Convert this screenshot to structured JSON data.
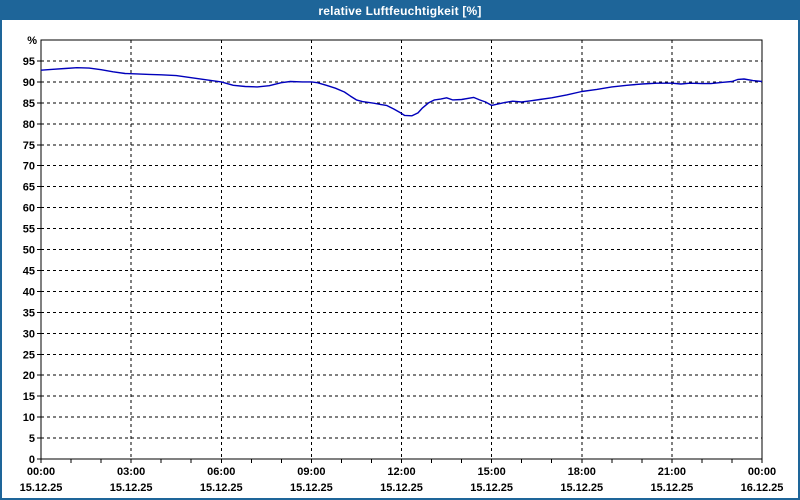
{
  "window": {
    "title": "relative Luftfeuchtigkeit [%]",
    "frame_color": "#1e6599",
    "title_text_color": "#ffffff",
    "background": "#ffffff"
  },
  "chart_data": {
    "type": "line",
    "title": "relative Luftfeuchtigkeit [%]",
    "ylabel": "%",
    "grid": {
      "horizontal": "dashed",
      "vertical": "dashed",
      "color": "#000000"
    },
    "y_axis": {
      "range": [
        0,
        100
      ],
      "tick_step": 5,
      "unit": "%",
      "labeled_ticks": [
        0,
        5,
        10,
        15,
        20,
        25,
        30,
        35,
        40,
        45,
        50,
        55,
        60,
        65,
        70,
        75,
        80,
        85,
        90,
        95
      ]
    },
    "x_axis": {
      "range_hours": [
        0,
        24
      ],
      "major_tick_hours": 3,
      "minor_tick_hours": 1,
      "labels": [
        {
          "hour": 0,
          "time": "00:00",
          "date": "15.12.25"
        },
        {
          "hour": 3,
          "time": "03:00",
          "date": "15.12.25"
        },
        {
          "hour": 6,
          "time": "06:00",
          "date": "15.12.25"
        },
        {
          "hour": 9,
          "time": "09:00",
          "date": "15.12.25"
        },
        {
          "hour": 12,
          "time": "12:00",
          "date": "15.12.25"
        },
        {
          "hour": 15,
          "time": "15:00",
          "date": "15.12.25"
        },
        {
          "hour": 18,
          "time": "18:00",
          "date": "15.12.25"
        },
        {
          "hour": 21,
          "time": "21:00",
          "date": "15.12.25"
        },
        {
          "hour": 24,
          "time": "00:00",
          "date": "16.12.25"
        }
      ]
    },
    "series": [
      {
        "name": "relative Luftfeuchtigkeit",
        "color": "#0000bb",
        "points": [
          [
            0.0,
            92.8
          ],
          [
            0.4,
            93.0
          ],
          [
            0.8,
            93.2
          ],
          [
            1.2,
            93.4
          ],
          [
            1.6,
            93.3
          ],
          [
            2.0,
            92.9
          ],
          [
            2.4,
            92.4
          ],
          [
            2.8,
            92.0
          ],
          [
            3.2,
            91.9
          ],
          [
            3.6,
            91.8
          ],
          [
            4.0,
            91.7
          ],
          [
            4.5,
            91.5
          ],
          [
            5.0,
            91.0
          ],
          [
            5.5,
            90.5
          ],
          [
            6.0,
            90.0
          ],
          [
            6.4,
            89.2
          ],
          [
            6.8,
            88.9
          ],
          [
            7.2,
            88.8
          ],
          [
            7.6,
            89.1
          ],
          [
            8.0,
            89.8
          ],
          [
            8.3,
            90.1
          ],
          [
            8.7,
            90.0
          ],
          [
            9.0,
            90.0
          ],
          [
            9.2,
            89.8
          ],
          [
            9.5,
            89.2
          ],
          [
            9.8,
            88.5
          ],
          [
            10.1,
            87.6
          ],
          [
            10.3,
            86.6
          ],
          [
            10.5,
            85.7
          ],
          [
            10.7,
            85.3
          ],
          [
            10.9,
            85.1
          ],
          [
            11.1,
            84.9
          ],
          [
            11.3,
            84.6
          ],
          [
            11.5,
            84.4
          ],
          [
            11.75,
            83.5
          ],
          [
            11.95,
            82.7
          ],
          [
            12.1,
            82.0
          ],
          [
            12.35,
            81.9
          ],
          [
            12.55,
            82.6
          ],
          [
            12.7,
            83.8
          ],
          [
            12.9,
            85.0
          ],
          [
            13.1,
            85.7
          ],
          [
            13.3,
            85.9
          ],
          [
            13.5,
            86.2
          ],
          [
            13.7,
            85.7
          ],
          [
            14.0,
            85.8
          ],
          [
            14.4,
            86.3
          ],
          [
            14.6,
            85.7
          ],
          [
            14.8,
            85.2
          ],
          [
            15.0,
            84.4
          ],
          [
            15.2,
            84.7
          ],
          [
            15.45,
            85.1
          ],
          [
            15.7,
            85.4
          ],
          [
            16.0,
            85.2
          ],
          [
            16.3,
            85.5
          ],
          [
            16.6,
            85.8
          ],
          [
            17.0,
            86.2
          ],
          [
            17.5,
            86.9
          ],
          [
            18.0,
            87.7
          ],
          [
            18.5,
            88.2
          ],
          [
            19.0,
            88.8
          ],
          [
            19.5,
            89.2
          ],
          [
            20.0,
            89.5
          ],
          [
            20.5,
            89.7
          ],
          [
            21.0,
            89.7
          ],
          [
            21.3,
            89.5
          ],
          [
            21.6,
            89.7
          ],
          [
            22.0,
            89.6
          ],
          [
            22.3,
            89.6
          ],
          [
            22.7,
            89.9
          ],
          [
            23.0,
            90.1
          ],
          [
            23.2,
            90.6
          ],
          [
            23.4,
            90.7
          ],
          [
            23.7,
            90.3
          ],
          [
            24.0,
            90.1
          ]
        ]
      }
    ]
  }
}
